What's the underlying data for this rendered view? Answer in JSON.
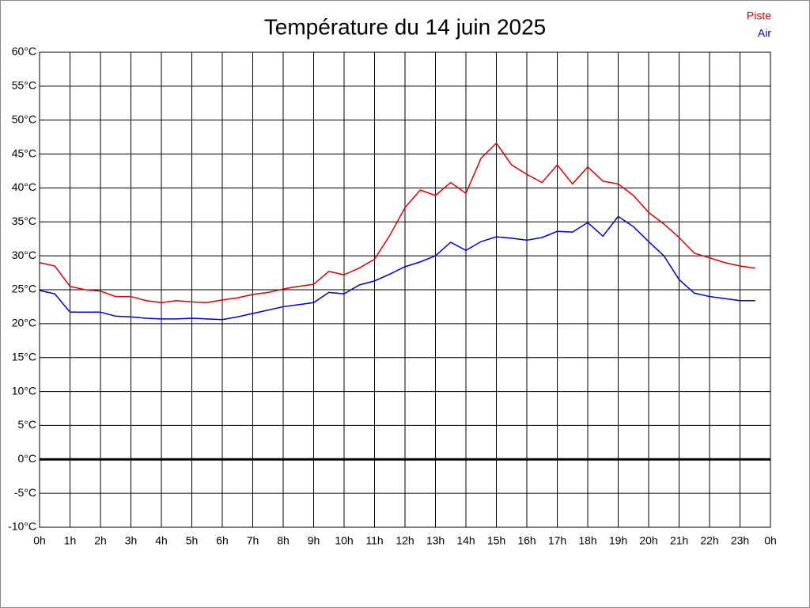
{
  "chart_data": {
    "type": "line",
    "title": "Température du 14 juin 2025",
    "x": [
      0,
      0.5,
      1,
      1.5,
      2,
      2.5,
      3,
      3.5,
      4,
      4.5,
      5,
      5.5,
      6,
      6.5,
      7,
      7.5,
      8,
      8.5,
      9,
      9.5,
      10,
      10.5,
      11,
      11.5,
      12,
      12.5,
      13,
      13.5,
      14,
      14.5,
      15,
      15.5,
      16,
      16.5,
      17,
      17.5,
      18,
      18.5,
      19,
      19.5,
      20,
      20.5,
      21,
      21.5,
      22,
      22.5,
      23,
      23.5
    ],
    "series": [
      {
        "name": "Piste",
        "color": "#dd0000",
        "values": [
          29.0,
          28.5,
          25.5,
          25.0,
          24.8,
          24.0,
          24.0,
          23.4,
          23.1,
          23.4,
          23.2,
          23.1,
          23.5,
          23.8,
          24.3,
          24.6,
          25.1,
          25.5,
          25.8,
          27.7,
          27.2,
          28.2,
          29.5,
          33.0,
          37.1,
          39.7,
          38.9,
          40.8,
          39.2,
          44.4,
          46.6,
          43.4,
          42.0,
          40.8,
          43.4,
          40.6,
          43.1,
          41.0,
          40.6,
          38.9,
          36.4,
          34.7,
          32.7,
          30.4,
          29.7,
          29.0,
          28.5,
          28.2
        ]
      },
      {
        "name": "Air",
        "color": "#0000cc",
        "values": [
          24.9,
          24.4,
          21.7,
          21.7,
          21.7,
          21.1,
          21.0,
          20.8,
          20.7,
          20.7,
          20.8,
          20.7,
          20.6,
          21.0,
          21.5,
          22.0,
          22.5,
          22.8,
          23.1,
          24.6,
          24.4,
          25.7,
          26.3,
          27.3,
          28.4,
          29.1,
          30.0,
          32.0,
          30.8,
          32.1,
          32.8,
          32.6,
          32.3,
          32.7,
          33.6,
          33.5,
          34.9,
          32.9,
          35.8,
          34.3,
          32.1,
          30.0,
          26.5,
          24.5,
          24.0,
          23.7,
          23.4,
          23.4
        ]
      }
    ],
    "xlim": [
      0,
      24
    ],
    "xticks": [
      {
        "value": 0,
        "label": "0h"
      },
      {
        "value": 1,
        "label": "1h"
      },
      {
        "value": 2,
        "label": "2h"
      },
      {
        "value": 3,
        "label": "3h"
      },
      {
        "value": 4,
        "label": "4h"
      },
      {
        "value": 5,
        "label": "5h"
      },
      {
        "value": 6,
        "label": "6h"
      },
      {
        "value": 7,
        "label": "7h"
      },
      {
        "value": 8,
        "label": "8h"
      },
      {
        "value": 9,
        "label": "9h"
      },
      {
        "value": 10,
        "label": "10h"
      },
      {
        "value": 11,
        "label": "11h"
      },
      {
        "value": 12,
        "label": "12h"
      },
      {
        "value": 13,
        "label": "13h"
      },
      {
        "value": 14,
        "label": "14h"
      },
      {
        "value": 15,
        "label": "15h"
      },
      {
        "value": 16,
        "label": "16h"
      },
      {
        "value": 17,
        "label": "17h"
      },
      {
        "value": 18,
        "label": "18h"
      },
      {
        "value": 19,
        "label": "19h"
      },
      {
        "value": 20,
        "label": "20h"
      },
      {
        "value": 21,
        "label": "21h"
      },
      {
        "value": 22,
        "label": "22h"
      },
      {
        "value": 23,
        "label": "23h"
      },
      {
        "value": 24,
        "label": "0h"
      }
    ],
    "ylim": [
      -10,
      60
    ],
    "yticks": [
      {
        "value": -10,
        "label": "-10°C"
      },
      {
        "value": -5,
        "label": "-5°C"
      },
      {
        "value": 0,
        "label": "0°C"
      },
      {
        "value": 5,
        "label": "5°C"
      },
      {
        "value": 10,
        "label": "10°C"
      },
      {
        "value": 15,
        "label": "15°C"
      },
      {
        "value": 20,
        "label": "20°C"
      },
      {
        "value": 25,
        "label": "25°C"
      },
      {
        "value": 30,
        "label": "30°C"
      },
      {
        "value": 35,
        "label": "35°C"
      },
      {
        "value": 40,
        "label": "40°C"
      },
      {
        "value": 45,
        "label": "45°C"
      },
      {
        "value": 50,
        "label": "50°C"
      },
      {
        "value": 55,
        "label": "55°C"
      },
      {
        "value": 60,
        "label": "60°C"
      }
    ],
    "grid": true,
    "zero_line": true,
    "legend": "top-right"
  }
}
